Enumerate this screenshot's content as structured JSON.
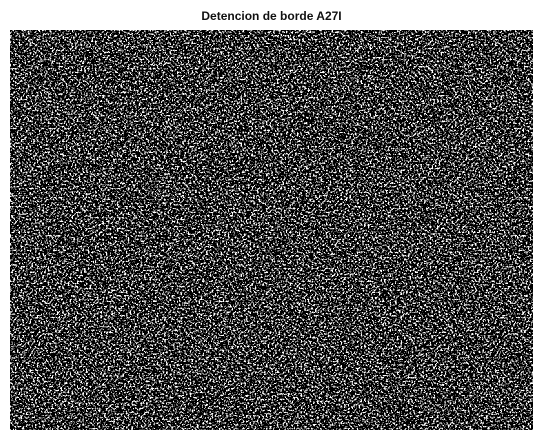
{
  "title": "Detencion de borde A27I"
}
